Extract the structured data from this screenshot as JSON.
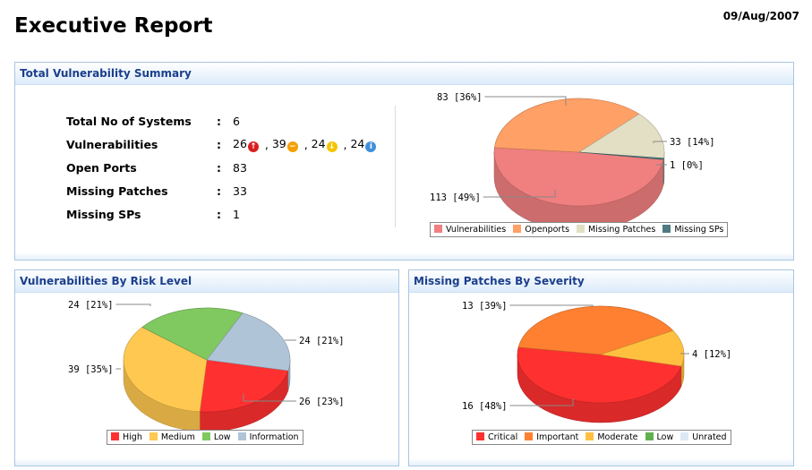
{
  "header": {
    "title": "Executive Report",
    "date": "09/Aug/2007"
  },
  "summary": {
    "title": "Total Vulnerability Summary",
    "rows": [
      {
        "label": "Total No of Systems",
        "value": "6"
      },
      {
        "label": "Vulnerabilities",
        "values": [
          {
            "n": "26",
            "icon": "high-risk-up-arrow-icon",
            "color": "#d91f1f"
          },
          {
            "n": "39",
            "icon": "medium-risk-minus-icon",
            "color": "#f5a000"
          },
          {
            "n": "24",
            "icon": "low-risk-down-arrow-icon",
            "color": "#f5c400"
          },
          {
            "n": "24",
            "icon": "info-icon",
            "color": "#3f8fdc"
          }
        ]
      },
      {
        "label": "Open Ports",
        "value": "83"
      },
      {
        "label": "Missing Patches",
        "value": "33"
      },
      {
        "label": "Missing SPs",
        "value": "1"
      }
    ]
  },
  "risk": {
    "title": "Vulnerabilities By Risk Level"
  },
  "patches": {
    "title": "Missing Patches By Severity"
  },
  "chart_data": [
    {
      "type": "pie",
      "title": "Total Vulnerability Summary",
      "categories": [
        "Vulnerabilities",
        "Openports",
        "Missing Patches",
        "Missing SPs"
      ],
      "values": [
        113,
        83,
        33,
        1
      ],
      "labels": [
        "113 [49%]",
        "83 [36%]",
        "33 [14%]",
        "1 [0%]"
      ],
      "colors": [
        "#f07f7f",
        "#ffa066",
        "#e3dfc4",
        "#4f7a80"
      ],
      "legend": "bottom"
    },
    {
      "type": "pie",
      "title": "Vulnerabilities By Risk Level",
      "categories": [
        "High",
        "Medium",
        "Low",
        "Information"
      ],
      "values": [
        26,
        39,
        24,
        24
      ],
      "labels": [
        "26 [23%]",
        "39 [35%]",
        "24 [21%]",
        "24 [21%]"
      ],
      "colors": [
        "#ff3030",
        "#ffc850",
        "#80c860",
        "#b0c4d8"
      ],
      "legend": "bottom"
    },
    {
      "type": "pie",
      "title": "Missing Patches By Severity",
      "categories": [
        "Critical",
        "Important",
        "Moderate",
        "Low",
        "Unrated"
      ],
      "values": [
        16,
        13,
        4,
        0,
        0
      ],
      "labels": [
        "16 [48%]",
        "13 [39%]",
        "4 [12%]",
        "",
        ""
      ],
      "colors": [
        "#ff3030",
        "#ff8030",
        "#ffc040",
        "#60b050",
        "#dde8f5"
      ],
      "legend": "bottom"
    }
  ]
}
